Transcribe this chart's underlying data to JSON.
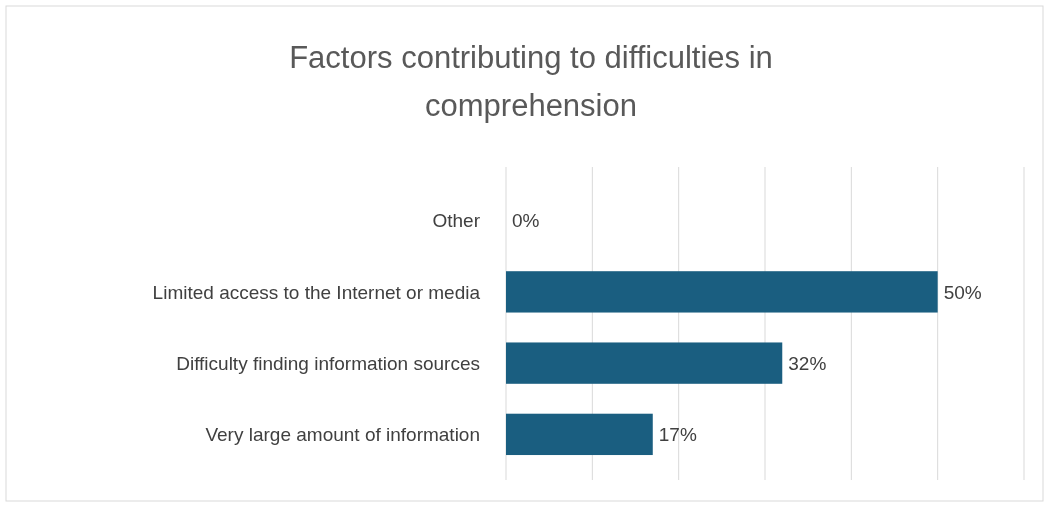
{
  "chart_data": {
    "type": "bar",
    "orientation": "horizontal",
    "title": "Factors contributing to difficulties in comprehension",
    "categories": [
      "Other",
      "Limited access to the Internet or media",
      "Difficulty finding information sources",
      "Very large amount of information"
    ],
    "values": [
      0,
      50,
      32,
      17
    ],
    "color": "#1a5e80",
    "value_labels": [
      "0%",
      "50%",
      "32%",
      "17%"
    ],
    "xlim": [
      0,
      60
    ],
    "xticks": [
      {
        "value": 0,
        "label": null
      },
      {
        "value": 10,
        "label": null
      },
      {
        "value": 20,
        "label": null
      },
      {
        "value": 30,
        "label": null
      },
      {
        "value": 40,
        "label": null
      },
      {
        "value": 50,
        "label": null
      },
      {
        "value": 60,
        "label": null
      }
    ],
    "grid": "x",
    "tick_labels": "y"
  }
}
